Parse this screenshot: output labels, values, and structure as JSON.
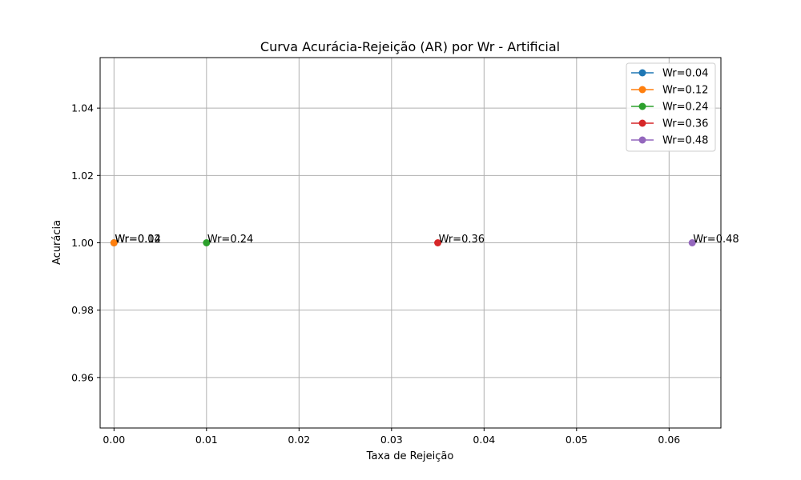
{
  "chart_data": {
    "type": "line",
    "title": "Curva Acurácia-Rejeição (AR) por Wr - Artificial",
    "xlabel": "Taxa de Rejeição",
    "ylabel": "Acurácia",
    "xlim": [
      -0.0015,
      0.0656
    ],
    "ylim": [
      0.945,
      1.055
    ],
    "xticks": [
      0.0,
      0.01,
      0.02,
      0.03,
      0.04,
      0.05,
      0.06
    ],
    "xtick_labels": [
      "0.00",
      "0.01",
      "0.02",
      "0.03",
      "0.04",
      "0.05",
      "0.06"
    ],
    "yticks": [
      0.96,
      0.98,
      1.0,
      1.02,
      1.04
    ],
    "ytick_labels": [
      "0.96",
      "0.98",
      "1.00",
      "1.02",
      "1.04"
    ],
    "grid": true,
    "legend_position": "top-right",
    "series": [
      {
        "name": "Wr=0.04",
        "color": "#1f77b4",
        "points": [
          {
            "x": 0.0,
            "y": 1.0
          }
        ],
        "label": "Wr=0.04"
      },
      {
        "name": "Wr=0.12",
        "color": "#ff7f0e",
        "points": [
          {
            "x": 0.0,
            "y": 1.0
          }
        ],
        "label": "Wr=0.12"
      },
      {
        "name": "Wr=0.24",
        "color": "#2ca02c",
        "points": [
          {
            "x": 0.01,
            "y": 1.0
          }
        ],
        "label": "Wr=0.24"
      },
      {
        "name": "Wr=0.36",
        "color": "#d62728",
        "points": [
          {
            "x": 0.035,
            "y": 1.0
          }
        ],
        "label": "Wr=0.36"
      },
      {
        "name": "Wr=0.48",
        "color": "#9467bd",
        "points": [
          {
            "x": 0.0625,
            "y": 1.0
          }
        ],
        "label": "Wr=0.48"
      }
    ]
  }
}
